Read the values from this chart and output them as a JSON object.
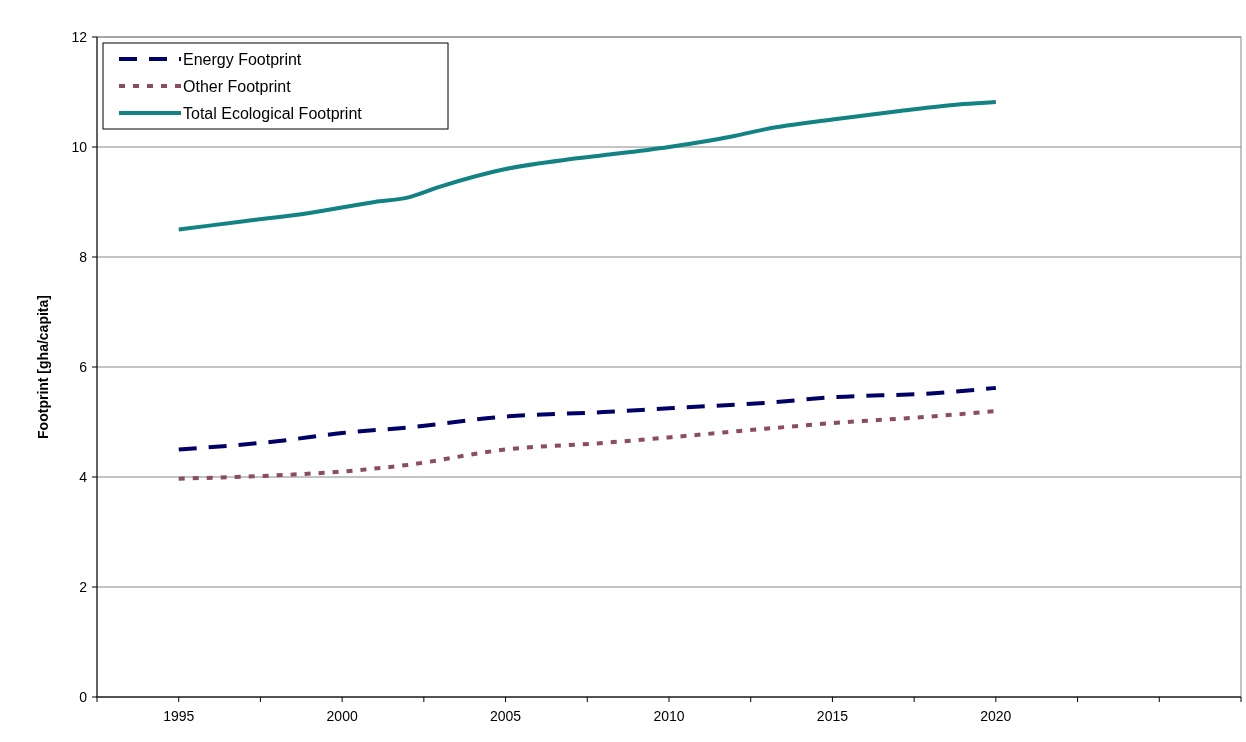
{
  "chart_data": {
    "type": "line",
    "ylabel": "Footprint [gha/capita]",
    "xlim": [
      1992.5,
      2027.5
    ],
    "xticks": [
      {
        "value": 1992.5,
        "label": null
      },
      1995,
      {
        "value": 1997.5,
        "label": null
      },
      2000,
      {
        "value": 2002.5,
        "label": null
      },
      2005,
      {
        "value": 2007.5,
        "label": null
      },
      2010,
      {
        "value": 2012.5,
        "label": null
      },
      2015,
      {
        "value": 2017.5,
        "label": null
      },
      2020,
      {
        "value": 2022.5,
        "label": null
      },
      {
        "value": 2025,
        "label": null
      },
      {
        "value": 2027.5,
        "label": null
      }
    ],
    "ylim": [
      0,
      12
    ],
    "yticks": [
      0,
      2,
      4,
      6,
      8,
      10,
      12
    ],
    "grid": "y",
    "legend": "top left",
    "series": [
      {
        "name": "Energy Footprint",
        "color": "#000066",
        "line_style": "dashed",
        "x": [
          1995,
          1998,
          2000,
          2002,
          2005,
          2008,
          2010,
          2013,
          2015,
          2018,
          2020
        ],
        "values": [
          4.5,
          4.65,
          4.8,
          4.9,
          5.1,
          5.18,
          5.25,
          5.35,
          5.45,
          5.52,
          5.62
        ]
      },
      {
        "name": "Other Footprint",
        "color": "#8b4c5c",
        "line_style": "dotted",
        "x": [
          1995,
          1998,
          2000,
          2002,
          2005,
          2008,
          2010,
          2013,
          2015,
          2018,
          2020
        ],
        "values": [
          3.97,
          4.03,
          4.1,
          4.22,
          4.5,
          4.62,
          4.72,
          4.88,
          4.98,
          5.1,
          5.2
        ]
      },
      {
        "name": "Total Ecological Footprint",
        "color": "#138282",
        "line_style": "solid",
        "x": [
          1995,
          1997,
          1999,
          2001,
          2002,
          2003,
          2005,
          2007,
          2008,
          2010,
          2012,
          2013,
          2015,
          2017,
          2019,
          2020
        ],
        "values": [
          8.5,
          8.65,
          8.8,
          9.0,
          9.08,
          9.28,
          9.6,
          9.78,
          9.85,
          10.0,
          10.2,
          10.33,
          10.5,
          10.65,
          10.78,
          10.82
        ]
      }
    ]
  }
}
